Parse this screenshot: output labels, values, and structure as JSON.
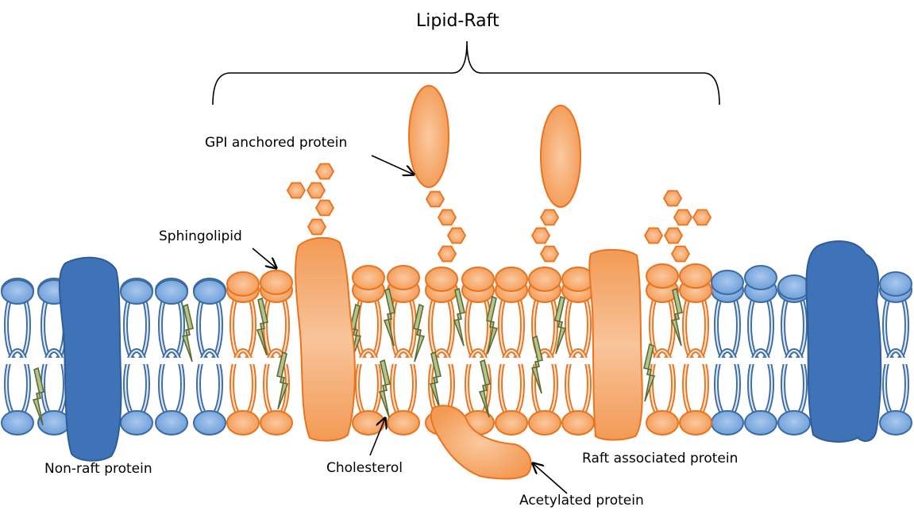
{
  "diagram": {
    "title": "Lipid-Raft",
    "labels": {
      "gpi": "GPI anchored protein",
      "sphingolipid": "Sphingolipid",
      "nonraft": "Non-raft protein",
      "cholesterol": "Cholesterol",
      "raftassoc": "Raft associated protein",
      "acetylated": "Acetylated protein"
    },
    "colors": {
      "orange_fill": "#f7ac78",
      "orange_stroke": "#e9731f",
      "orange_dark": "#f39a55",
      "blue_fill": "#8fb6e3",
      "blue_stroke": "#3c6aa3",
      "blue_protein": "#3f73b8",
      "cholesterol": "#7a8a4c"
    },
    "icons": [
      "bracket-icon",
      "arrow-icon",
      "hexagon-icon",
      "cholesterol-icon"
    ]
  }
}
